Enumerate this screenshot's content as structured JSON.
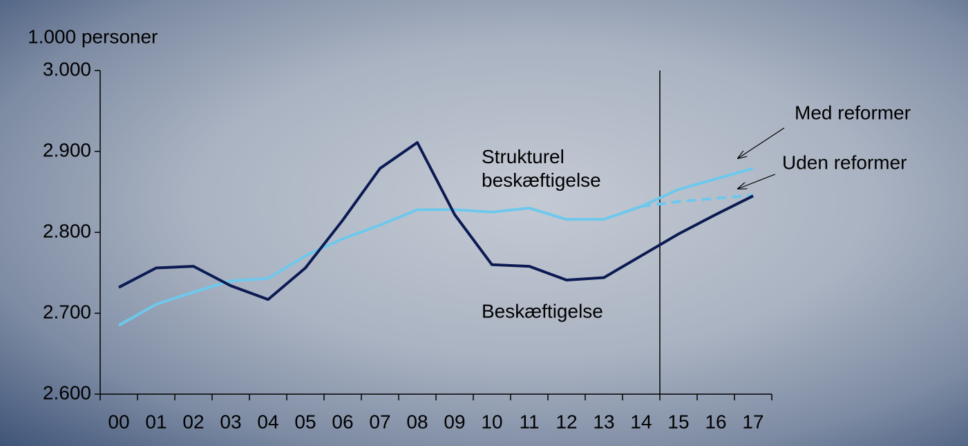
{
  "chart_data": {
    "type": "line",
    "y_label": "1.000 personer",
    "categories": [
      "00",
      "01",
      "02",
      "03",
      "04",
      "05",
      "06",
      "07",
      "08",
      "09",
      "10",
      "11",
      "12",
      "13",
      "14",
      "15",
      "16",
      "17"
    ],
    "series": [
      {
        "name": "Beskæftigelse",
        "color": "#0b1a52",
        "dash": false,
        "values": [
          2732,
          2756,
          2758,
          2734,
          2717,
          2756,
          2815,
          2879,
          2911,
          2822,
          2760,
          2758,
          2741,
          2744,
          2771,
          2798,
          2822,
          2845
        ]
      },
      {
        "name": "Strukturel beskæftigelse",
        "color": "#6ec8ec",
        "dash": false,
        "values": [
          2685,
          2711,
          2726,
          2740,
          2743,
          2771,
          2792,
          2809,
          2828,
          2828,
          2825,
          2830,
          2816,
          2816,
          2832,
          2853,
          2866,
          2879
        ]
      },
      {
        "name": "Uden reformer",
        "color": "#6ec8ec",
        "dash": true,
        "values": [
          null,
          null,
          null,
          null,
          null,
          null,
          null,
          null,
          null,
          null,
          null,
          null,
          null,
          null,
          2832,
          2838,
          2842,
          2846
        ]
      }
    ],
    "annotations": [
      "Med reformer"
    ],
    "ylim": [
      2600,
      3000
    ],
    "yticks": [
      {
        "value": 2600,
        "label": "2.600"
      },
      {
        "value": 2700,
        "label": "2.700"
      },
      {
        "value": 2800,
        "label": "2.800"
      },
      {
        "value": 2900,
        "label": "2.900"
      },
      {
        "value": 3000,
        "label": "3.000"
      }
    ],
    "grid": false
  }
}
